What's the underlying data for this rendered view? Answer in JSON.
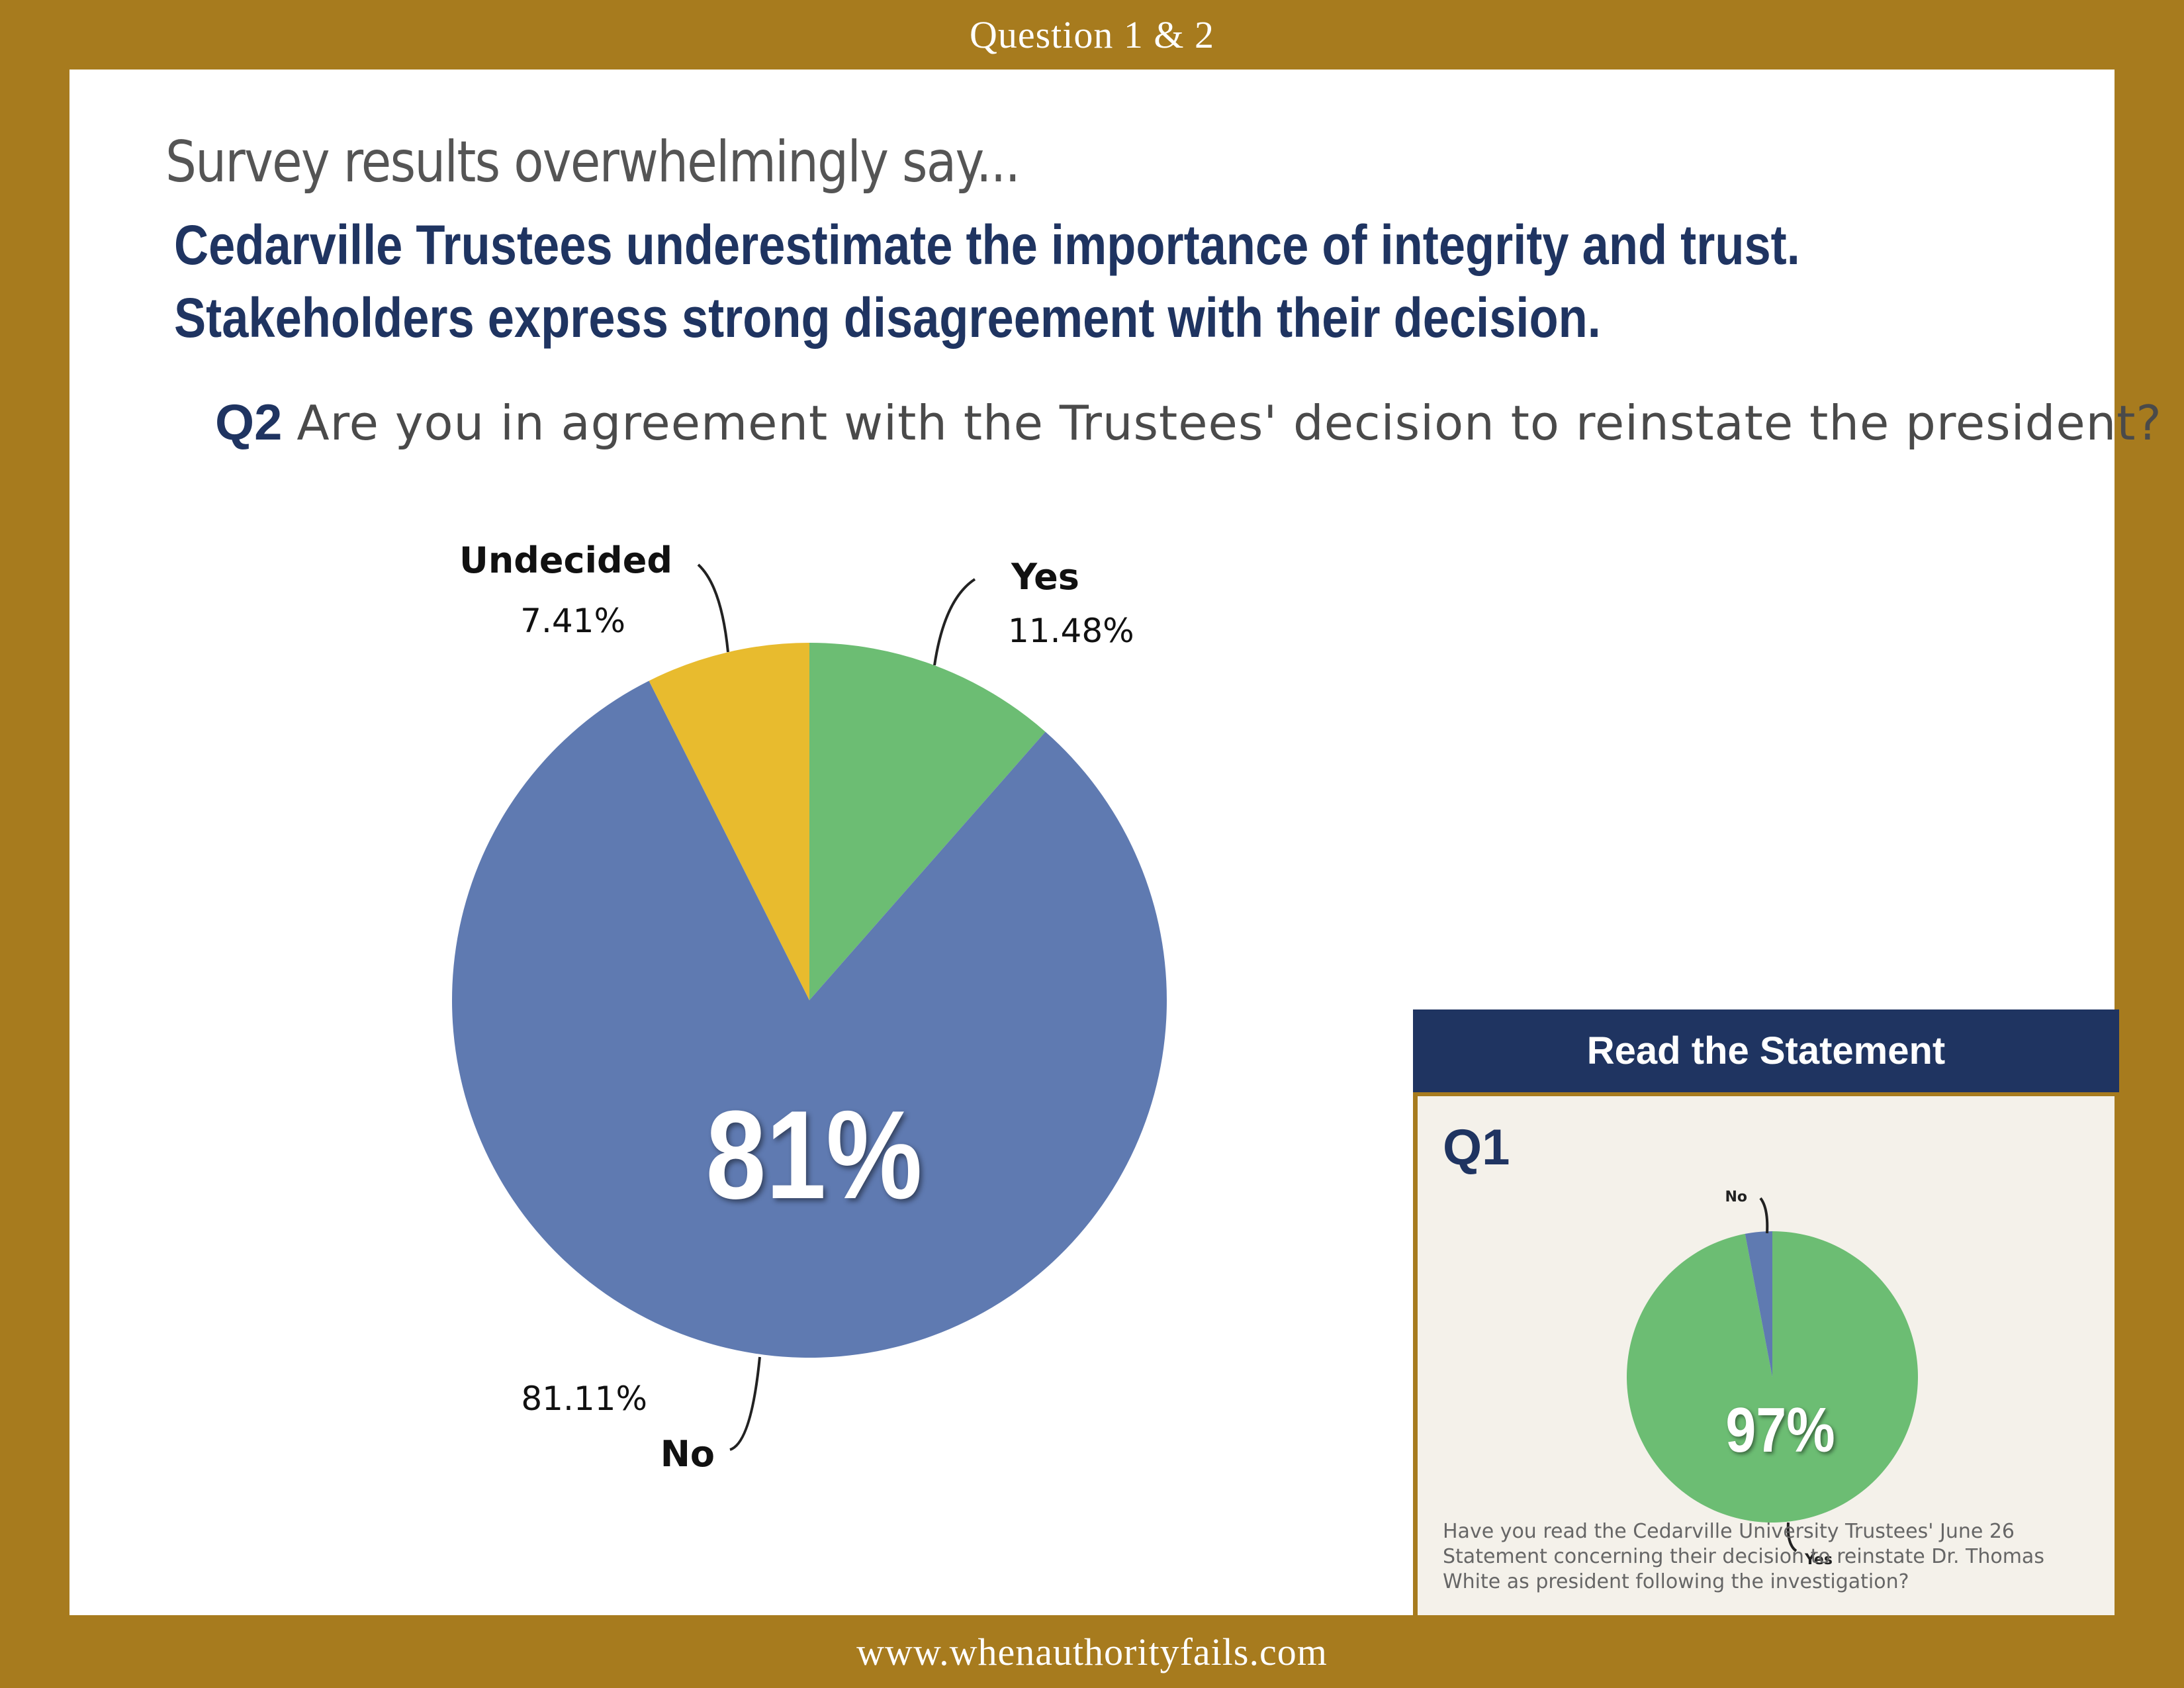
{
  "header": {
    "banner": "Question 1 & 2"
  },
  "footer": {
    "url": "www.whenauthorityfails.com"
  },
  "intro": "Survey results overwhelmingly say...",
  "headline": {
    "line1": "Cedarville Trustees underestimate the importance of integrity and trust.",
    "line2": "Stakeholders express strong disagreement with their decision."
  },
  "q2": {
    "tag": "Q2",
    "question": "Are you in agreement with the Trustees' decision to reinstate the president?"
  },
  "statement": {
    "button_label": "Read the Statement",
    "q1_tag": "Q1",
    "q1_question": "Have you read the Cedarville University Trustees' June 26 Statement concerning their decision to reinstate Dr. Thomas White as president following the investigation?"
  },
  "colors": {
    "gold": "#a77b1e",
    "navy": "#1f3461",
    "yes_green": "#6cbd73",
    "no_blue": "#5f7ab1",
    "undecided_yellow": "#e8bb2e"
  },
  "chart_data": [
    {
      "type": "pie",
      "big_label": "81%",
      "slices": [
        {
          "name": "Yes",
          "value": 11.48,
          "label": "11.48%",
          "color": "#6cbd73"
        },
        {
          "name": "No",
          "value": 81.11,
          "label": "81.11%",
          "color": "#5f7ab1"
        },
        {
          "name": "Undecided",
          "value": 7.41,
          "label": "7.41%",
          "color": "#e8bb2e"
        }
      ]
    },
    {
      "type": "pie",
      "big_label": "97%",
      "slices": [
        {
          "name": "Yes",
          "value": 97,
          "color": "#6cbd73"
        },
        {
          "name": "No",
          "value": 3,
          "color": "#5f7ab1"
        }
      ]
    }
  ]
}
